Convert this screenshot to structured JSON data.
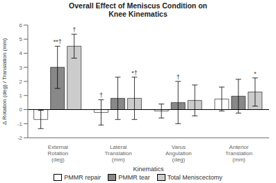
{
  "chart_data": {
    "type": "bar",
    "title": "Overall Effect of Meniscus Condition on\nKnee Kinematics",
    "xlabel": "Kinematics",
    "ylabel": "Δ Rotation (deg) / Translation (mm)",
    "categories": [
      "External\nRotation\n(deg)",
      "Lateral\nTranslation\n(mm)",
      "Varus\nAngulation\n(deg)",
      "Anterior\nTranslation\n(mm)"
    ],
    "series": [
      {
        "name": "PMMR repair",
        "color": "white",
        "values": [
          -0.7,
          -0.2,
          -0.1,
          0.75
        ],
        "errors": [
          0.65,
          0.9,
          0.5,
          0.85
        ]
      },
      {
        "name": "PMMR tear",
        "color": "#888888",
        "values": [
          3.0,
          0.8,
          0.5,
          0.95
        ],
        "errors": [
          1.5,
          1.5,
          1.5,
          1.2
        ]
      },
      {
        "name": "Total Meniscectomy",
        "color": "#cccccc",
        "values": [
          4.5,
          0.8,
          0.65,
          1.25
        ],
        "errors": [
          0.85,
          1.5,
          1.1,
          1.0
        ]
      }
    ],
    "annotations": [
      {
        "category": "External\nRotation\n(deg)",
        "series": "PMMR tear",
        "text": "**†"
      },
      {
        "category": "External\nRotation\n(deg)",
        "series": "Total Meniscectomy",
        "text": "†"
      },
      {
        "category": "Lateral\nTranslation\n(mm)",
        "series": "PMMR repair",
        "text": "†"
      },
      {
        "category": "Lateral\nTranslation\n(mm)",
        "series": "Total Meniscectomy",
        "text": "*†"
      },
      {
        "category": "Varus\nAngulation\n(deg)",
        "series": "PMMR tear",
        "text": "†"
      },
      {
        "category": "Anterior\nTranslation\n(mm)",
        "series": "Total Meniscectomy",
        "text": "*"
      }
    ],
    "ylim": [
      -2,
      6
    ],
    "yticks": [
      -2,
      -1,
      0,
      1,
      2,
      3,
      4,
      5,
      6
    ],
    "grid": false,
    "legend": "bottom"
  }
}
